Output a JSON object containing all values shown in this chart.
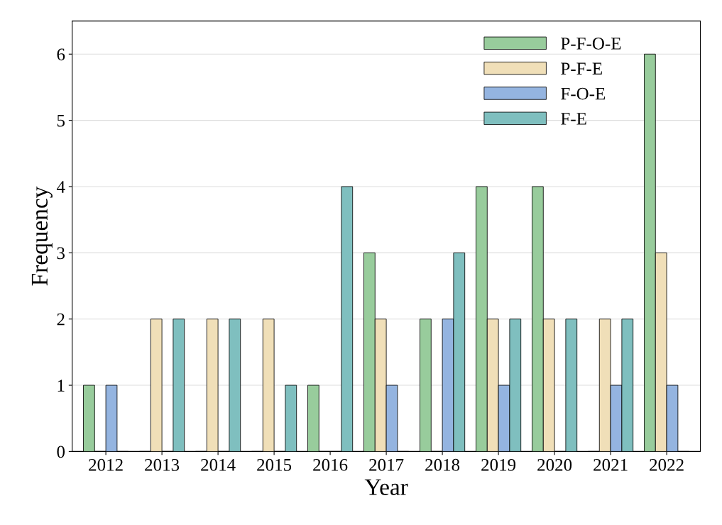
{
  "chart_data": {
    "type": "bar",
    "xlabel": "Year",
    "ylabel": "Frequency",
    "categories": [
      "2012",
      "2013",
      "2014",
      "2015",
      "2016",
      "2017",
      "2018",
      "2019",
      "2020",
      "2021",
      "2022"
    ],
    "series": [
      {
        "name": "P-F-O-E",
        "color": "#98cc9c",
        "values": [
          1,
          0,
          0,
          0,
          1,
          3,
          2,
          4,
          4,
          0,
          6
        ]
      },
      {
        "name": "P-F-E",
        "color": "#f0dfb8",
        "values": [
          0,
          2,
          2,
          2,
          0,
          2,
          0,
          2,
          2,
          2,
          3
        ]
      },
      {
        "name": "F-O-E",
        "color": "#94b4e0",
        "values": [
          1,
          0,
          0,
          0,
          0,
          1,
          2,
          1,
          0,
          1,
          1
        ]
      },
      {
        "name": "F-E",
        "color": "#7fbfbf",
        "values": [
          0,
          2,
          2,
          1,
          4,
          0,
          3,
          2,
          2,
          2,
          0
        ]
      }
    ],
    "ylim": [
      0,
      6.5
    ],
    "yticks": [
      0,
      1,
      2,
      3,
      4,
      5,
      6
    ],
    "grid": "y",
    "legend": "top right"
  }
}
